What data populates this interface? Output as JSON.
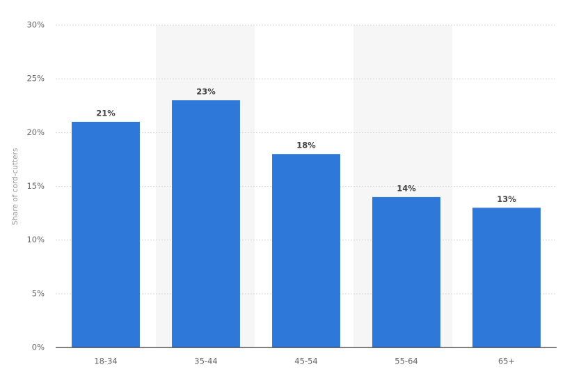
{
  "chart_data": {
    "type": "bar",
    "y_label": "Share of cord-cutters",
    "categories": [
      "18-34",
      "35-44",
      "45-54",
      "55-64",
      "65+"
    ],
    "values": [
      21,
      23,
      18,
      14,
      13
    ],
    "value_labels": [
      "21%",
      "23%",
      "18%",
      "14%",
      "13%"
    ],
    "color": "#2d78d8",
    "ylim": [
      0,
      30
    ],
    "yticks": [
      {
        "value": 0,
        "label": "0%"
      },
      {
        "value": 5,
        "label": "5%"
      },
      {
        "value": 10,
        "label": "10%"
      },
      {
        "value": 15,
        "label": "15%"
      },
      {
        "value": 20,
        "label": "20%"
      },
      {
        "value": 25,
        "label": "25%"
      },
      {
        "value": 30,
        "label": "30%"
      }
    ],
    "grid": true
  }
}
